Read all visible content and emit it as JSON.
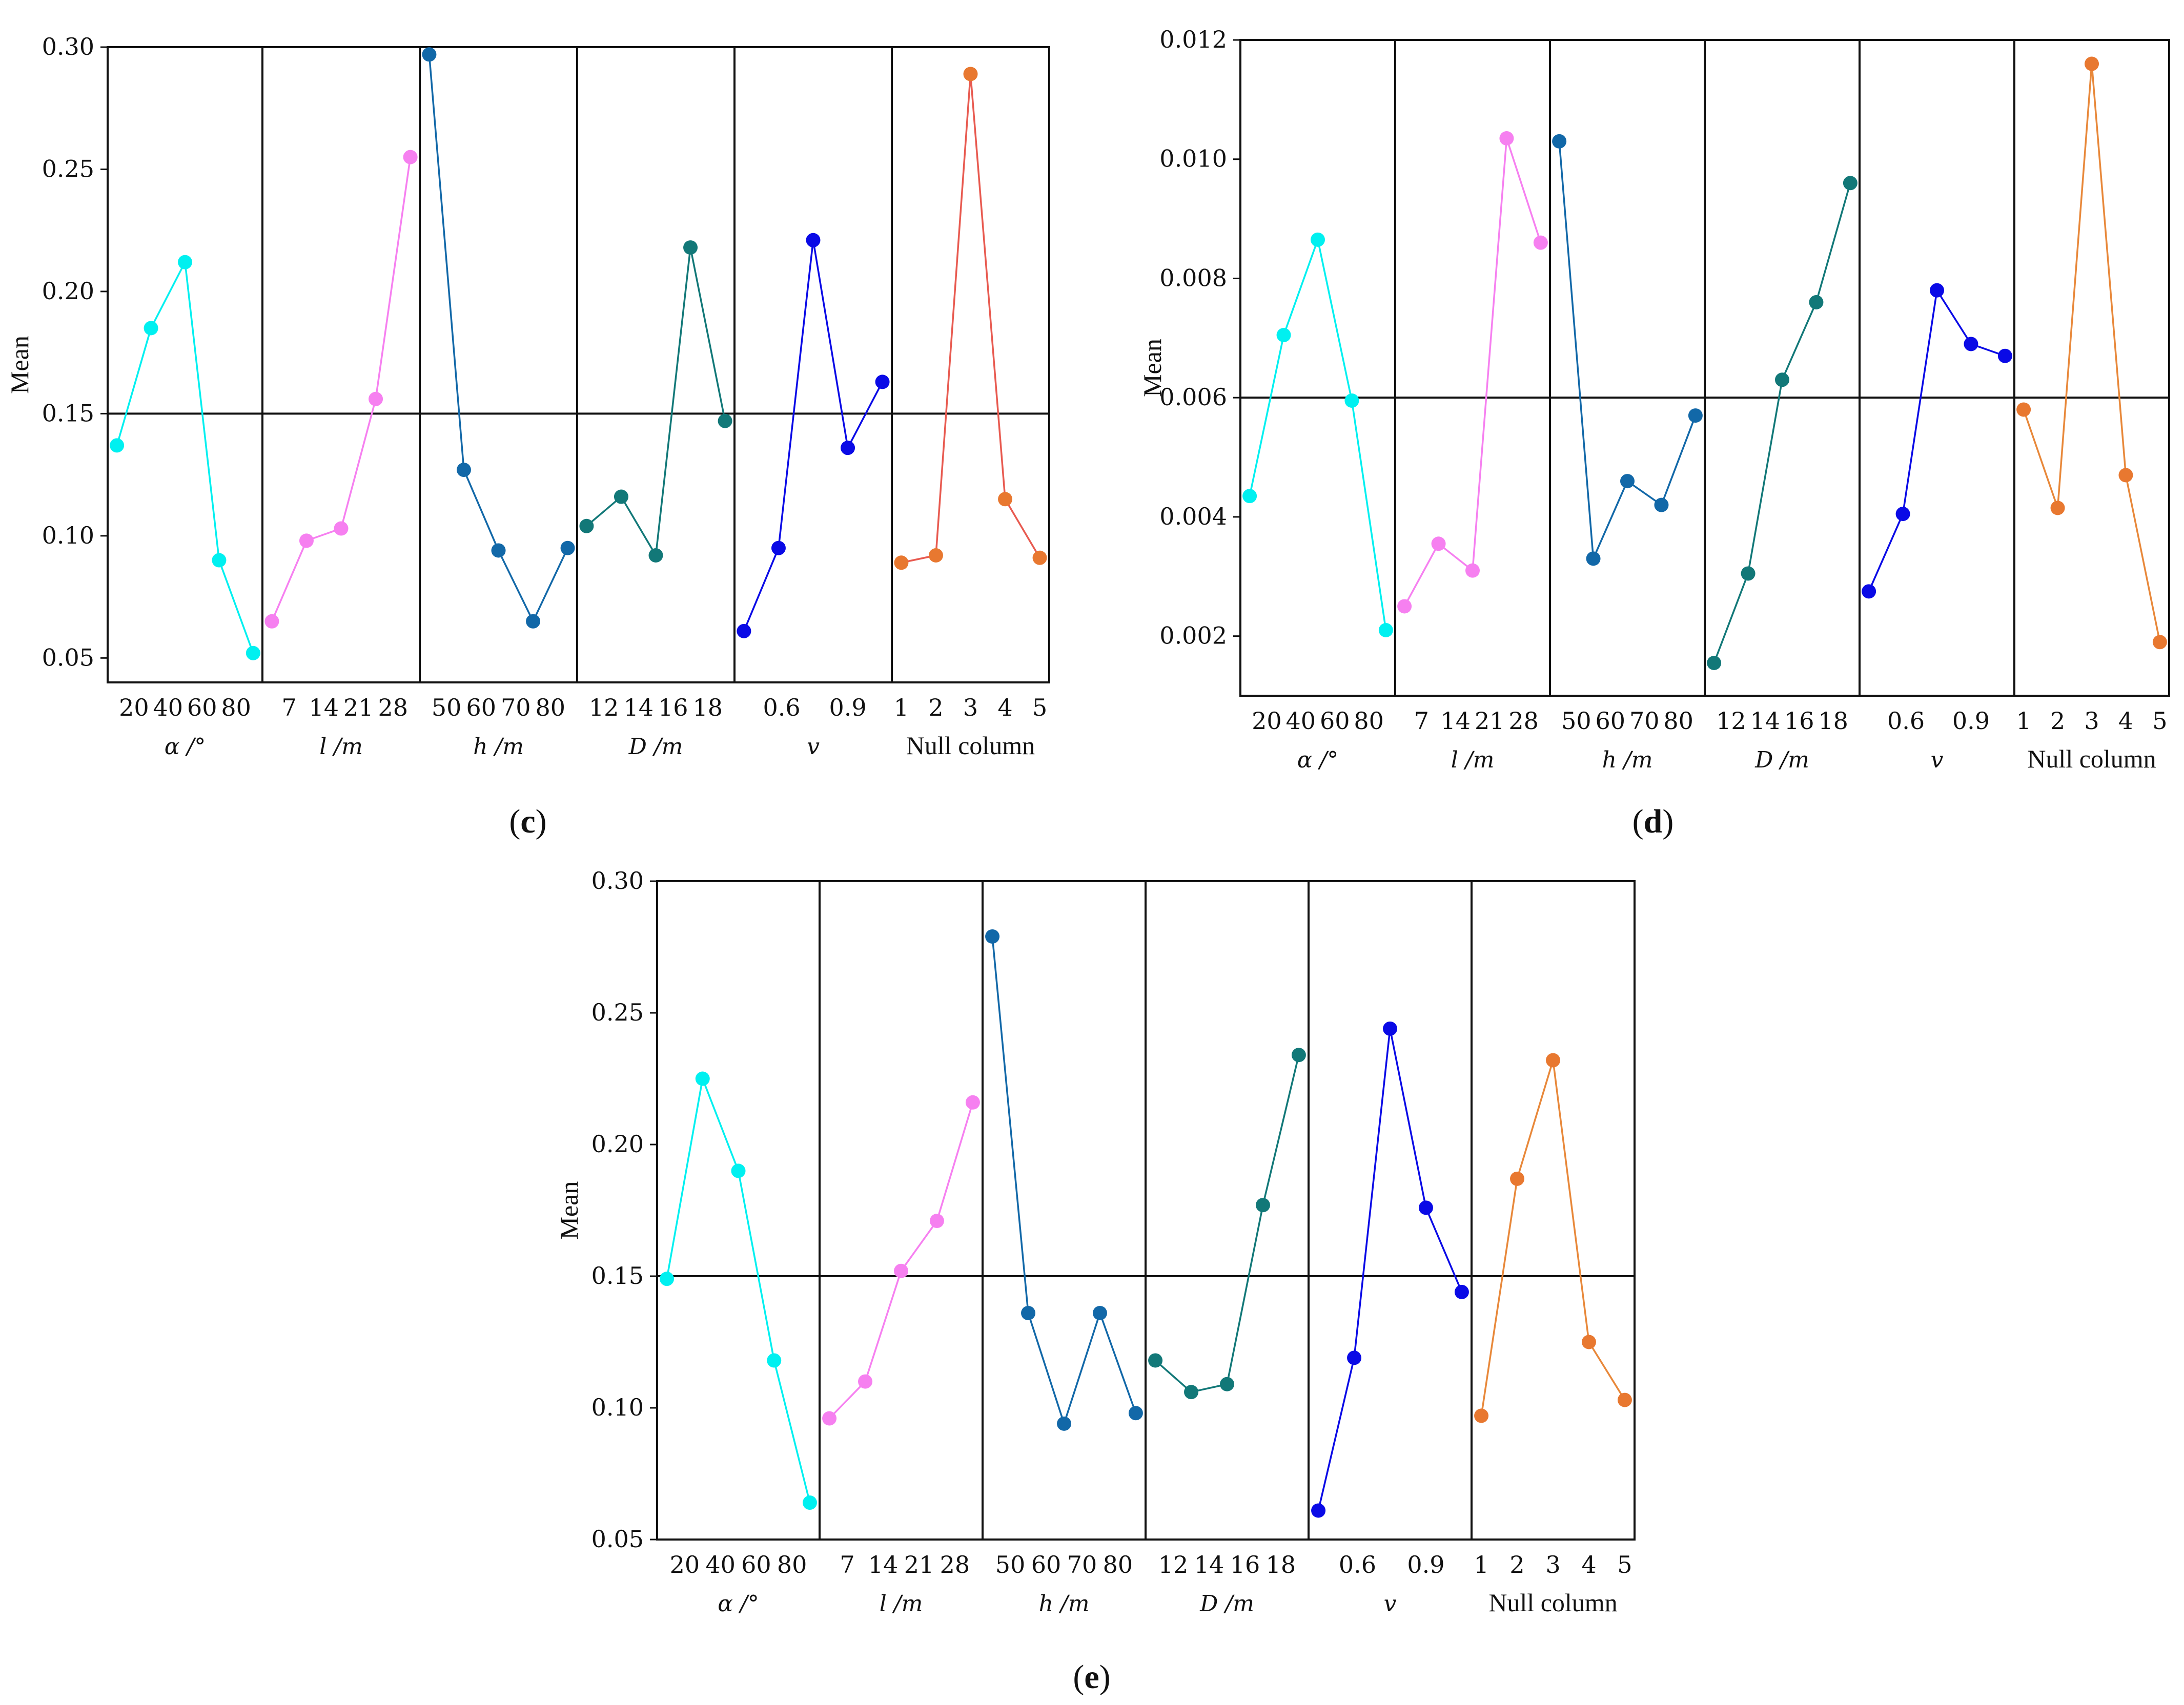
{
  "chart_data": [
    {
      "type": "line",
      "panel_label": "c",
      "ylabel": "Mean",
      "ylim": [
        0.04,
        0.3
      ],
      "yticks": [
        "0.30",
        "0.25",
        "0.20",
        "0.15",
        "0.10",
        "0.05"
      ],
      "reference_line": 0.15,
      "factors": [
        {
          "name": "α /°",
          "color": "#00f0f0",
          "tick_labels": [
            "20",
            "40",
            "60",
            "80"
          ],
          "points": [
            0.137,
            0.185,
            0.212,
            0.09,
            0.052
          ]
        },
        {
          "name": "l /m",
          "color": "#f680f0",
          "tick_labels": [
            "7",
            "14",
            "21",
            "28"
          ],
          "points": [
            0.065,
            0.098,
            0.103,
            0.156,
            0.255
          ]
        },
        {
          "name": "h /m",
          "color": "#1268a8",
          "tick_labels": [
            "50",
            "60",
            "70",
            "80"
          ],
          "points": [
            0.297,
            0.127,
            0.094,
            0.065,
            0.095
          ]
        },
        {
          "name": "D /m",
          "color": "#127878",
          "tick_labels": [
            "12",
            "14",
            "16",
            "18"
          ],
          "points": [
            0.104,
            0.116,
            0.092,
            0.218,
            0.147
          ]
        },
        {
          "name": "v",
          "color": "#0a0ae6",
          "tick_labels": [
            "0.6",
            "0.9"
          ],
          "points": [
            0.061,
            0.095,
            0.221,
            0.136,
            0.163
          ]
        },
        {
          "name": "Null column",
          "color": "#e87830",
          "line_color": "#e85a50",
          "tick_labels": [
            "1",
            "2",
            "3",
            "4",
            "5"
          ],
          "points": [
            0.089,
            0.092,
            0.289,
            0.115,
            0.091
          ]
        }
      ]
    },
    {
      "type": "line",
      "panel_label": "d",
      "ylabel": "Mean",
      "ylim": [
        0.001,
        0.012
      ],
      "yticks": [
        "0.012",
        "0.010",
        "0.008",
        "0.006",
        "0.004",
        "0.002"
      ],
      "reference_line": 0.006,
      "factors": [
        {
          "name": "α /°",
          "color": "#00f0f0",
          "tick_labels": [
            "20",
            "40",
            "60",
            "80"
          ],
          "points": [
            0.00435,
            0.00705,
            0.00865,
            0.00595,
            0.0021
          ]
        },
        {
          "name": "l /m",
          "color": "#f680f0",
          "tick_labels": [
            "7",
            "14",
            "21",
            "28"
          ],
          "points": [
            0.0025,
            0.00355,
            0.0031,
            0.01035,
            0.0086
          ]
        },
        {
          "name": "h /m",
          "color": "#1268a8",
          "tick_labels": [
            "50",
            "60",
            "70",
            "80"
          ],
          "points": [
            0.0103,
            0.0033,
            0.0046,
            0.0042,
            0.0057
          ]
        },
        {
          "name": "D /m",
          "color": "#127878",
          "tick_labels": [
            "12",
            "14",
            "16",
            "18"
          ],
          "points": [
            0.00155,
            0.00305,
            0.0063,
            0.0076,
            0.0096
          ]
        },
        {
          "name": "v",
          "color": "#0a0ae6",
          "tick_labels": [
            "0.6",
            "0.9"
          ],
          "points": [
            0.00275,
            0.00405,
            0.0078,
            0.0069,
            0.0067
          ]
        },
        {
          "name": "Null column",
          "color": "#e87830",
          "line_color": "#e8883a",
          "tick_labels": [
            "1",
            "2",
            "3",
            "4",
            "5"
          ],
          "points": [
            0.0058,
            0.00415,
            0.0116,
            0.0047,
            0.0019
          ]
        }
      ]
    },
    {
      "type": "line",
      "panel_label": "e",
      "ylabel": "Mean",
      "ylim": [
        0.05,
        0.3
      ],
      "yticks": [
        "0.30",
        "0.25",
        "0.20",
        "0.15",
        "0.10",
        "0.05"
      ],
      "reference_line": 0.15,
      "factors": [
        {
          "name": "α /°",
          "color": "#00f0f0",
          "tick_labels": [
            "20",
            "40",
            "60",
            "80"
          ],
          "points": [
            0.149,
            0.225,
            0.19,
            0.118,
            0.064
          ]
        },
        {
          "name": "l /m",
          "color": "#f680f0",
          "tick_labels": [
            "7",
            "14",
            "21",
            "28"
          ],
          "points": [
            0.096,
            0.11,
            0.152,
            0.171,
            0.216
          ]
        },
        {
          "name": "h /m",
          "color": "#1268a8",
          "tick_labels": [
            "50",
            "60",
            "70",
            "80"
          ],
          "points": [
            0.279,
            0.136,
            0.094,
            0.136,
            0.098
          ]
        },
        {
          "name": "D /m",
          "color": "#127878",
          "tick_labels": [
            "12",
            "14",
            "16",
            "18"
          ],
          "points": [
            0.118,
            0.106,
            0.109,
            0.177,
            0.234
          ]
        },
        {
          "name": "v",
          "color": "#0a0ae6",
          "tick_labels": [
            "0.6",
            "0.9"
          ],
          "points": [
            0.061,
            0.119,
            0.244,
            0.176,
            0.144
          ]
        },
        {
          "name": "Null column",
          "color": "#e87830",
          "line_color": "#e8883a",
          "tick_labels": [
            "1",
            "2",
            "3",
            "4",
            "5"
          ],
          "points": [
            0.097,
            0.187,
            0.232,
            0.125,
            0.103
          ]
        }
      ]
    }
  ]
}
